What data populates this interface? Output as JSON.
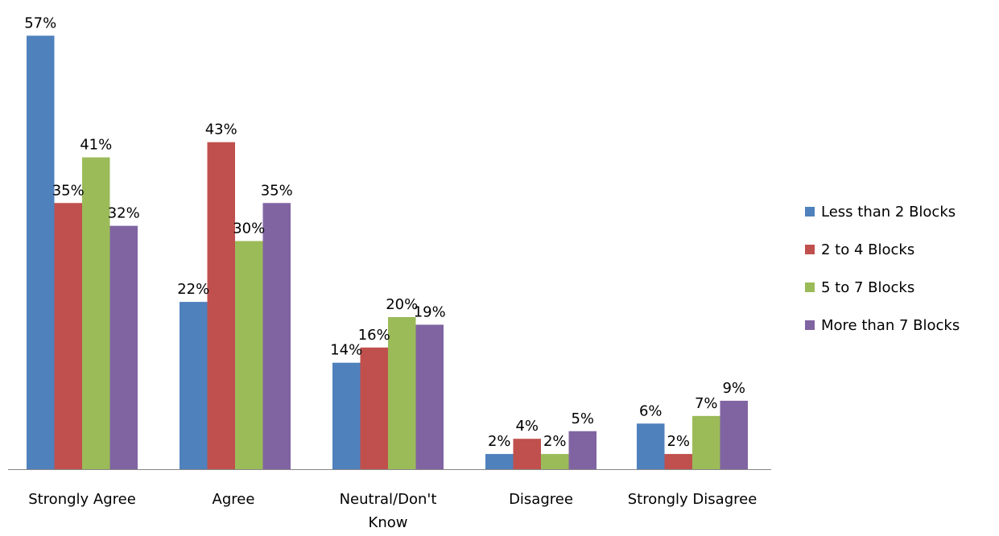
{
  "chart_data": {
    "type": "bar",
    "title": "",
    "xlabel": "",
    "ylabel": "",
    "ylim": [
      0,
      60
    ],
    "value_suffix": "%",
    "categories": [
      "Strongly Agree",
      "Agree",
      "Neutral/Don't Know",
      "Disagree",
      "Strongly Disagree"
    ],
    "series": [
      {
        "name": "Less than 2 Blocks",
        "color": "#4F81BD",
        "values": [
          57,
          22,
          14,
          2,
          6
        ]
      },
      {
        "name": "2 to 4 Blocks",
        "color": "#C0504D",
        "values": [
          35,
          43,
          16,
          4,
          2
        ]
      },
      {
        "name": "5 to 7 Blocks",
        "color": "#9BBB59",
        "values": [
          41,
          30,
          20,
          2,
          7
        ]
      },
      {
        "name": "More than 7 Blocks",
        "color": "#8064A2",
        "values": [
          32,
          35,
          19,
          5,
          9
        ]
      }
    ],
    "legend_position": "right",
    "grid": false
  }
}
